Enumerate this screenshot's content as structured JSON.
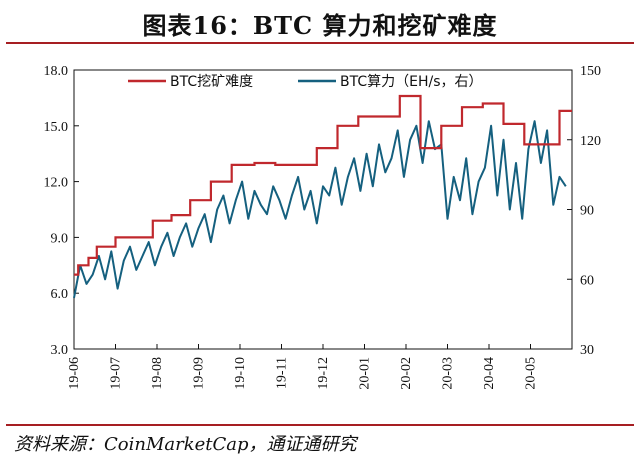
{
  "header": {
    "title": "图表16：BTC 算力和挖矿难度"
  },
  "footer": {
    "source": "资料来源：CoinMarketCap，通证通研究"
  },
  "chart_data": {
    "type": "line",
    "title": "图表16：BTC 算力和挖矿难度",
    "xlabel": "",
    "ylabel": "",
    "categories": [
      "19-06",
      "19-07",
      "19-08",
      "19-09",
      "19-10",
      "19-11",
      "19-12",
      "20-01",
      "20-02",
      "20-03",
      "20-04",
      "20-05"
    ],
    "left_axis": {
      "ylim": [
        3.0,
        18.0
      ],
      "ticks": [
        "3.0",
        "6.0",
        "9.0",
        "12.0",
        "15.0",
        "18.0"
      ]
    },
    "right_axis": {
      "ylim": [
        30,
        150
      ],
      "ticks": [
        "30",
        "60",
        "90",
        "120",
        "150"
      ]
    },
    "legend": [
      "BTC挖矿难度",
      "BTC算力（EH/s，右）"
    ],
    "colors": {
      "difficulty": "#c0282d",
      "hashrate": "#15607f",
      "axis": "#111111"
    },
    "series": [
      {
        "name": "BTC挖矿难度",
        "axis": "left",
        "style": "step",
        "x": [
          0,
          0.1,
          0.35,
          0.55,
          1.0,
          1.45,
          1.9,
          2.35,
          2.8,
          3.3,
          3.8,
          4.35,
          4.85,
          5.35,
          5.85,
          6.35,
          6.85,
          7.35,
          7.85,
          8.35,
          8.85,
          9.35,
          9.85,
          10.35,
          10.85,
          11.35,
          11.7
        ],
        "values": [
          7.0,
          7.5,
          7.9,
          8.5,
          9.0,
          9.0,
          9.9,
          10.2,
          11.0,
          12.0,
          12.9,
          13.0,
          12.9,
          12.9,
          13.8,
          15.0,
          15.5,
          15.5,
          16.6,
          13.8,
          15.0,
          16.0,
          16.2,
          15.1,
          14.0,
          14.0,
          15.8
        ]
      },
      {
        "name": "BTC算力（EH/s，右）",
        "axis": "right",
        "style": "line",
        "x": [
          0,
          0.15,
          0.3,
          0.45,
          0.6,
          0.75,
          0.9,
          1.05,
          1.2,
          1.35,
          1.5,
          1.65,
          1.8,
          1.95,
          2.1,
          2.25,
          2.4,
          2.55,
          2.7,
          2.85,
          3.0,
          3.15,
          3.3,
          3.45,
          3.6,
          3.75,
          3.9,
          4.05,
          4.2,
          4.35,
          4.5,
          4.65,
          4.8,
          4.95,
          5.1,
          5.25,
          5.4,
          5.55,
          5.7,
          5.85,
          6.0,
          6.15,
          6.3,
          6.45,
          6.6,
          6.75,
          6.9,
          7.05,
          7.2,
          7.35,
          7.5,
          7.65,
          7.8,
          7.95,
          8.1,
          8.25,
          8.4,
          8.55,
          8.7,
          8.85,
          9.0,
          9.15,
          9.3,
          9.45,
          9.6,
          9.75,
          9.9,
          10.05,
          10.2,
          10.35,
          10.5,
          10.65,
          10.8,
          10.95,
          11.1,
          11.25,
          11.4,
          11.55,
          11.7,
          11.85
        ],
        "values": [
          52,
          66,
          58,
          62,
          70,
          60,
          72,
          56,
          68,
          74,
          64,
          70,
          76,
          66,
          74,
          80,
          70,
          78,
          84,
          74,
          82,
          88,
          76,
          90,
          96,
          84,
          94,
          102,
          86,
          98,
          92,
          88,
          100,
          94,
          86,
          96,
          104,
          90,
          98,
          84,
          100,
          96,
          108,
          92,
          104,
          112,
          98,
          114,
          100,
          118,
          106,
          112,
          124,
          104,
          120,
          126,
          110,
          128,
          116,
          118,
          86,
          104,
          94,
          112,
          88,
          102,
          108,
          126,
          96,
          120,
          90,
          110,
          86,
          116,
          128,
          110,
          124,
          92,
          104,
          100
        ]
      }
    ]
  }
}
